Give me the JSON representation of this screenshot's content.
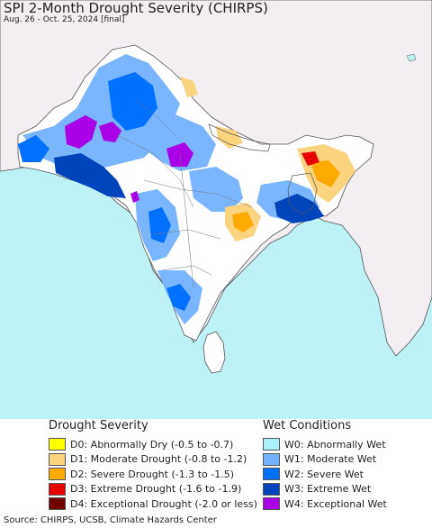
{
  "header": {
    "title": "SPI 2-Month Drought Severity (CHIRPS)",
    "subtitle": "Aug. 26 - Oct. 25, 2024 [final]"
  },
  "map": {
    "region": "South Asia",
    "colors": {
      "ocean": "#bdf3f6",
      "land_outside": "#f2eef2",
      "land_inside": "#ffffff",
      "border": "#555555"
    }
  },
  "legend": {
    "drought": {
      "title": "Drought Severity",
      "items": [
        {
          "label": "D0: Abnormally Dry (-0.5 to -0.7)",
          "color": "#ffff00"
        },
        {
          "label": "D1: Moderate Drought (-0.8 to -1.2)",
          "color": "#fcd37f"
        },
        {
          "label": "D2: Severe Drought (-1.3 to -1.5)",
          "color": "#ffaa00"
        },
        {
          "label": "D3: Extreme Drought (-1.6 to -1.9)",
          "color": "#e60000"
        },
        {
          "label": "D4: Exceptional Drought (-2.0 or less)",
          "color": "#730000"
        }
      ]
    },
    "wet": {
      "title": "Wet Conditions",
      "items": [
        {
          "label": "W0: Abnormally Wet",
          "color": "#aaf0ff"
        },
        {
          "label": "W1: Moderate Wet",
          "color": "#73b2ff"
        },
        {
          "label": "W2: Severe Wet",
          "color": "#0070ff"
        },
        {
          "label": "W3: Extreme Wet",
          "color": "#0044bb"
        },
        {
          "label": "W4: Exceptional Wet",
          "color": "#a900e6"
        }
      ]
    }
  },
  "footer": {
    "source": "Source: CHIRPS, UCSB, Climate Hazards Center"
  }
}
